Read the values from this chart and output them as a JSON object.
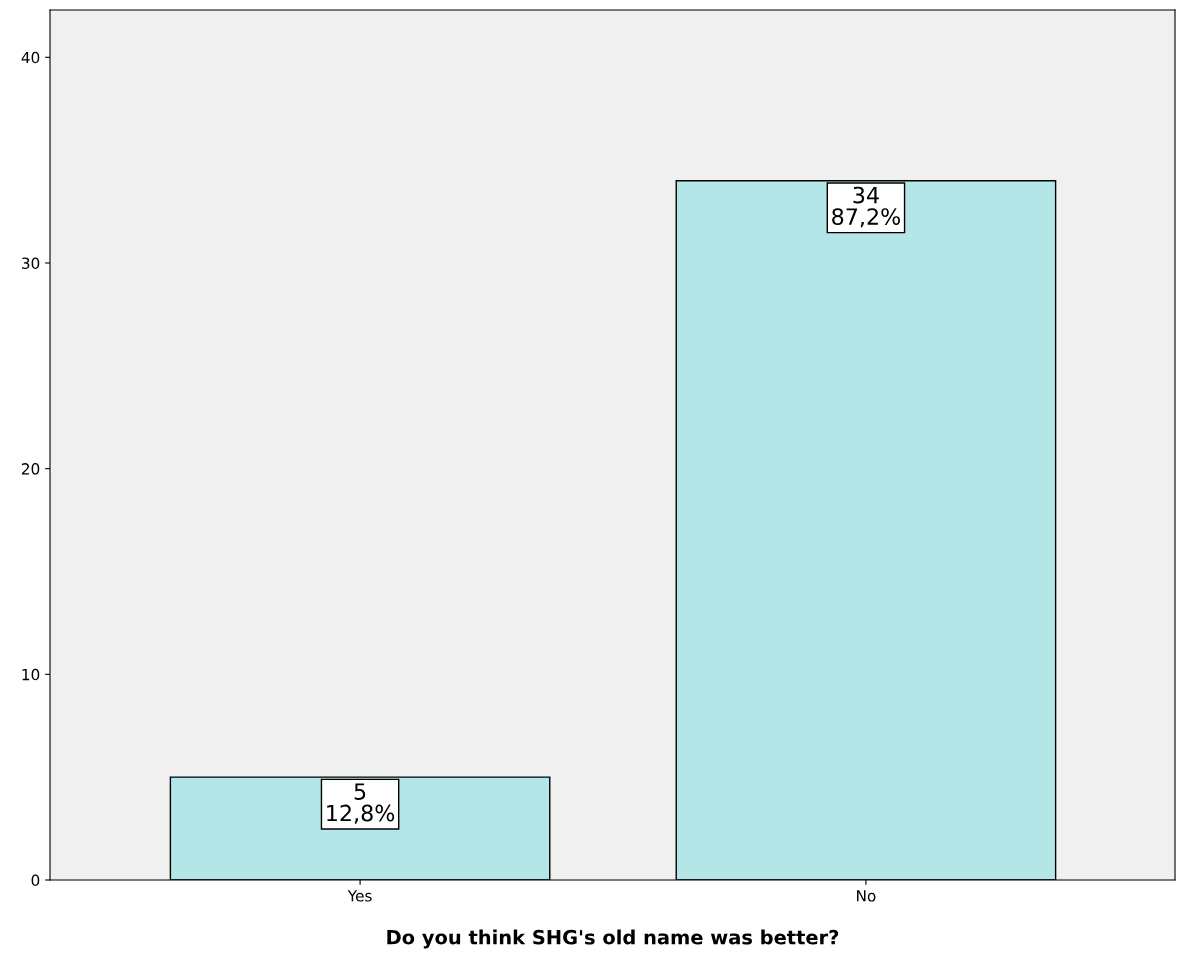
{
  "chart_data": {
    "type": "bar",
    "xlabel": "Do you think SHG's old name was better?",
    "categories": [
      "Yes",
      "No"
    ],
    "values": [
      5,
      34
    ],
    "value_labels": [
      "5\n12,8%",
      "34\n87,2%"
    ],
    "color": "#b4e6e8",
    "ylim": [
      0,
      42.3
    ],
    "yticks": [
      0,
      10,
      20,
      30,
      40
    ],
    "grid": false,
    "legend": false
  }
}
